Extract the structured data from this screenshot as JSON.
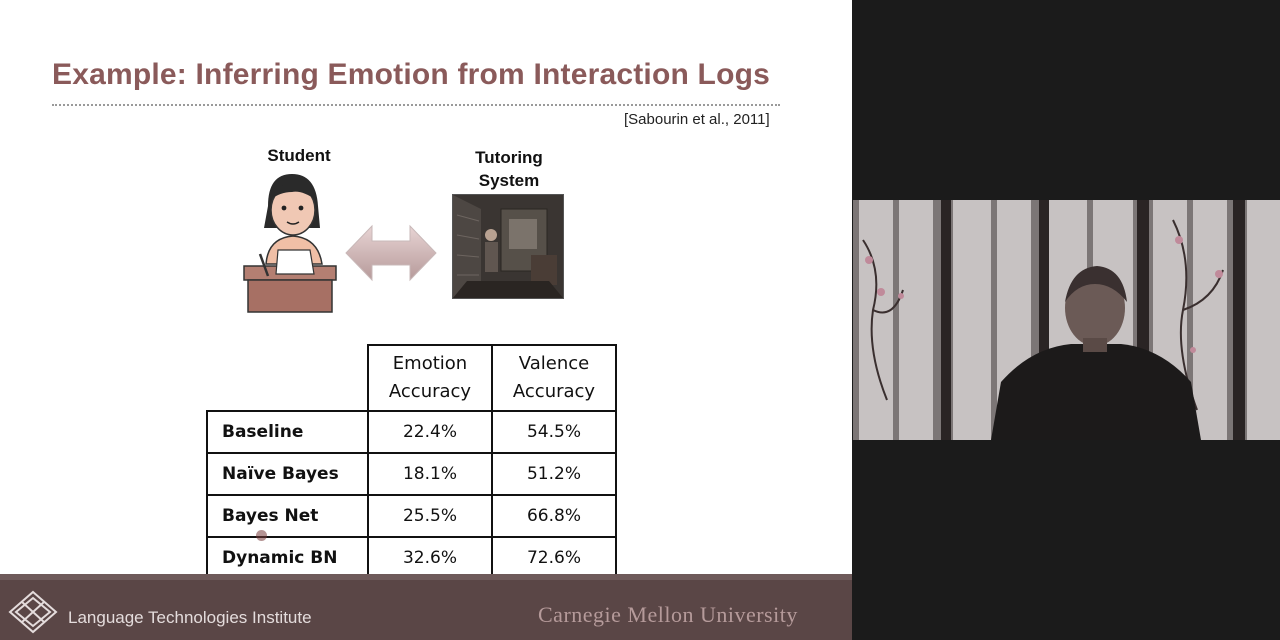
{
  "slide": {
    "title": "Example: Inferring Emotion from Interaction Logs",
    "citation": "[Sabourin et al., 2011]",
    "student_label": "Student",
    "tutoring_label_line1": "Tutoring",
    "tutoring_label_line2": "System"
  },
  "table": {
    "headers": [
      {
        "line1": "Emotion",
        "line2": "Accuracy"
      },
      {
        "line1": "Valence",
        "line2": "Accuracy"
      }
    ],
    "rows": [
      {
        "name": "Baseline",
        "emotion": "22.4%",
        "valence": "54.5%"
      },
      {
        "name": "Naïve Bayes",
        "emotion": "18.1%",
        "valence": "51.2%"
      },
      {
        "name": "Bayes Net",
        "emotion": "25.5%",
        "valence": "66.8%"
      },
      {
        "name": "Dynamic BN",
        "emotion": "32.6%",
        "valence": "72.6%"
      }
    ]
  },
  "footer": {
    "left_text": "Language Technologies Institute",
    "right_text": "Carnegie Mellon University"
  },
  "icons": {
    "student": "student-at-desk-icon",
    "arrow": "double-arrow-icon",
    "logo": "lti-logo-icon"
  },
  "colors": {
    "title": "#8a5a5a",
    "footer": "#5a4646",
    "background": "#1b1b1b"
  }
}
